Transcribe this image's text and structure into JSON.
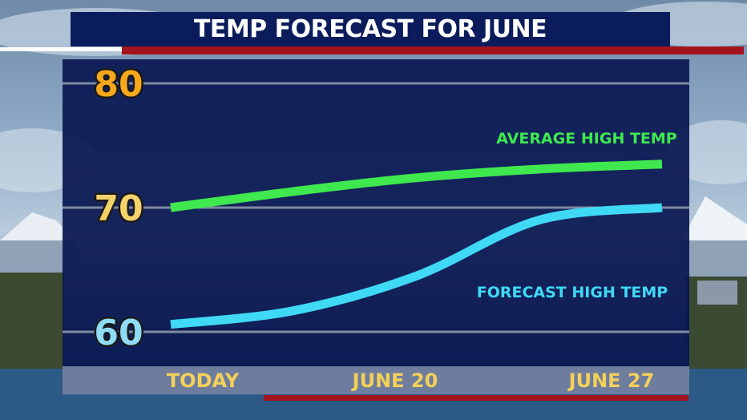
{
  "title": "TEMP FORECAST FOR JUNE",
  "colors": {
    "panel": "#0b1c5c",
    "accent_red": "#a4141e",
    "tick_80": "#f7a81b",
    "tick_70": "#f6d36a",
    "tick_60": "#8fdcf6",
    "x_labels": "#f3d05a",
    "average_series": "#3ee84e",
    "forecast_series": "#3fd9f6"
  },
  "chart_data": {
    "type": "line",
    "title": "TEMP FORECAST FOR JUNE",
    "xlabel": "",
    "ylabel": "",
    "x_ticks": [
      "TODAY",
      "JUNE 20",
      "JUNE 27"
    ],
    "y_ticks": [
      60,
      70,
      80
    ],
    "ylim": [
      60,
      80
    ],
    "grid": true,
    "series": [
      {
        "name": "AVERAGE HIGH TEMP",
        "x": [
          0,
          0.25,
          0.5,
          0.75,
          1
        ],
        "values": [
          70.0,
          71.3,
          72.4,
          73.1,
          73.5
        ]
      },
      {
        "name": "FORECAST HIGH TEMP",
        "x": [
          0,
          0.25,
          0.5,
          0.75,
          1
        ],
        "values": [
          60.6,
          61.7,
          64.5,
          69.0,
          70.0
        ]
      }
    ]
  }
}
